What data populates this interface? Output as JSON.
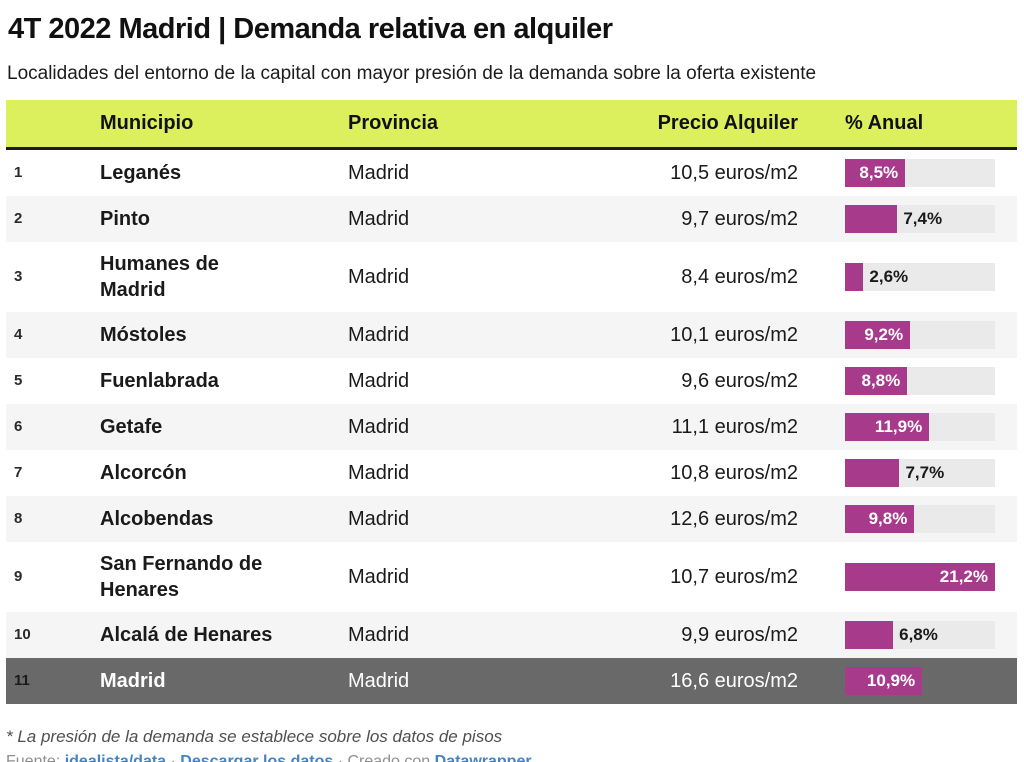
{
  "header": {
    "title": "4T 2022 Madrid | Demanda relativa en alquiler",
    "subtitle": "Localidades del entorno de la capital con mayor presión de la demanda sobre la oferta existente"
  },
  "table": {
    "columns": [
      "Municipio",
      "Provincia",
      "Precio Alquiler",
      "% Anual"
    ],
    "bar_max": 21.2,
    "rows": [
      {
        "rank": "1",
        "municipio": "Leganés",
        "provincia": "Madrid",
        "precio": "10,5 euros/m2",
        "pct_label": "8,5%",
        "pct_value": 8.5,
        "label_inside": true,
        "highlight": false
      },
      {
        "rank": "2",
        "municipio": "Pinto",
        "provincia": "Madrid",
        "precio": "9,7 euros/m2",
        "pct_label": "7,4%",
        "pct_value": 7.4,
        "label_inside": false,
        "highlight": false
      },
      {
        "rank": "3",
        "municipio": "Humanes de\nMadrid",
        "provincia": "Madrid",
        "precio": "8,4 euros/m2",
        "pct_label": "2,6%",
        "pct_value": 2.6,
        "label_inside": false,
        "highlight": false
      },
      {
        "rank": "4",
        "municipio": "Móstoles",
        "provincia": "Madrid",
        "precio": "10,1 euros/m2",
        "pct_label": "9,2%",
        "pct_value": 9.2,
        "label_inside": true,
        "highlight": false
      },
      {
        "rank": "5",
        "municipio": "Fuenlabrada",
        "provincia": "Madrid",
        "precio": "9,6 euros/m2",
        "pct_label": "8,8%",
        "pct_value": 8.8,
        "label_inside": true,
        "highlight": false
      },
      {
        "rank": "6",
        "municipio": "Getafe",
        "provincia": "Madrid",
        "precio": "11,1 euros/m2",
        "pct_label": "11,9%",
        "pct_value": 11.9,
        "label_inside": true,
        "highlight": false
      },
      {
        "rank": "7",
        "municipio": "Alcorcón",
        "provincia": "Madrid",
        "precio": "10,8 euros/m2",
        "pct_label": "7,7%",
        "pct_value": 7.7,
        "label_inside": false,
        "highlight": false
      },
      {
        "rank": "8",
        "municipio": "Alcobendas",
        "provincia": "Madrid",
        "precio": "12,6 euros/m2",
        "pct_label": "9,8%",
        "pct_value": 9.8,
        "label_inside": true,
        "highlight": false
      },
      {
        "rank": "9",
        "municipio": "San Fernando de\nHenares",
        "provincia": "Madrid",
        "precio": "10,7 euros/m2",
        "pct_label": "21,2%",
        "pct_value": 21.2,
        "label_inside": true,
        "highlight": false
      },
      {
        "rank": "10",
        "municipio": "Alcalá de Henares",
        "provincia": "Madrid",
        "precio": "9,9 euros/m2",
        "pct_label": "6,8%",
        "pct_value": 6.8,
        "label_inside": false,
        "highlight": false
      },
      {
        "rank": "11",
        "municipio": "Madrid",
        "provincia": "Madrid",
        "precio": "16,6 euros/m2",
        "pct_label": "10,9%",
        "pct_value": 10.9,
        "label_inside": true,
        "highlight": true
      }
    ]
  },
  "footer": {
    "note": "* La presión de la demanda se establece sobre los datos de pisos",
    "source_prefix": "Fuente: ",
    "source_link": "idealista/data",
    "sep1": " · ",
    "download_link": "Descargar los datos",
    "sep2": " · Creado con ",
    "tool_link": "Datawrapper"
  },
  "colors": {
    "header_bg": "#dcf05e",
    "bar": "#a83a8c",
    "highlight_row": "#696969",
    "stripe": "#f5f5f5",
    "track": "#eaeaea",
    "link": "#4584c4"
  },
  "chart_data": {
    "type": "table",
    "title": "4T 2022 Madrid | Demanda relativa en alquiler",
    "subtitle": "Localidades del entorno de la capital con mayor presión de la demanda sobre la oferta existente",
    "columns": [
      "Municipio",
      "Provincia",
      "Precio Alquiler",
      "% Anual"
    ],
    "categories": [
      "Leganés",
      "Pinto",
      "Humanes de Madrid",
      "Móstoles",
      "Fuenlabrada",
      "Getafe",
      "Alcorcón",
      "Alcobendas",
      "San Fernando de Henares",
      "Alcalá de Henares",
      "Madrid"
    ],
    "series": [
      {
        "name": "Provincia",
        "values": [
          "Madrid",
          "Madrid",
          "Madrid",
          "Madrid",
          "Madrid",
          "Madrid",
          "Madrid",
          "Madrid",
          "Madrid",
          "Madrid",
          "Madrid"
        ]
      },
      {
        "name": "Precio Alquiler (euros/m2)",
        "values": [
          10.5,
          9.7,
          8.4,
          10.1,
          9.6,
          11.1,
          10.8,
          12.6,
          10.7,
          9.9,
          16.6
        ]
      },
      {
        "name": "% Anual",
        "values": [
          8.5,
          7.4,
          2.6,
          9.2,
          8.8,
          11.9,
          7.7,
          9.8,
          21.2,
          6.8,
          10.9
        ]
      }
    ],
    "bar_axis_max": 21.2,
    "highlighted_row": "Madrid",
    "note": "* La presión de la demanda se establece sobre los datos de pisos",
    "source": "Fuente: idealista/data"
  }
}
